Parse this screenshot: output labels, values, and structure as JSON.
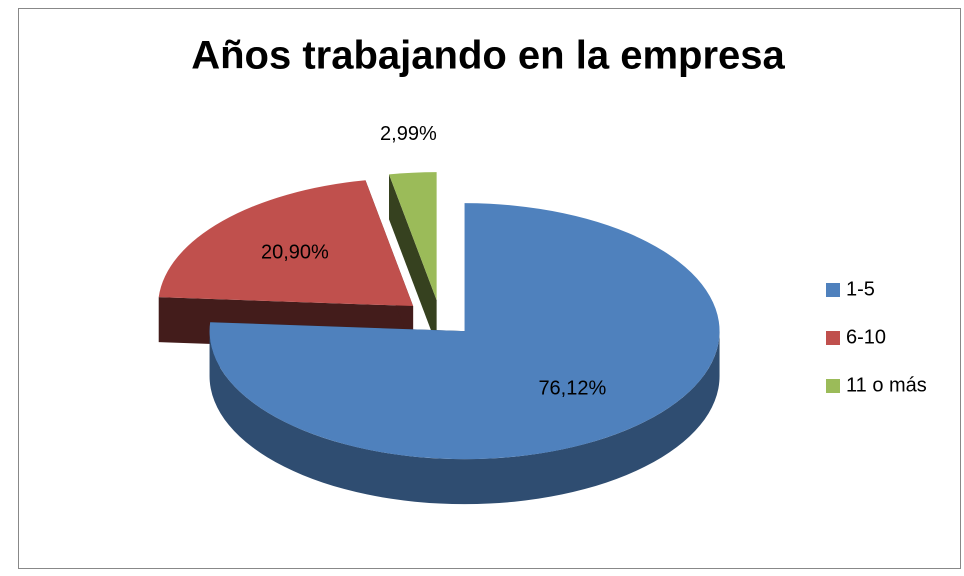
{
  "chart_data": {
    "type": "pie",
    "title": "Años trabajando en la empresa",
    "categories": [
      "1-5",
      "6-10",
      "11 o más"
    ],
    "values": [
      76.12,
      20.9,
      2.99
    ],
    "value_labels": [
      "76,12%",
      "20,90%",
      "2,99%"
    ],
    "colors": [
      "#4f81bd",
      "#c0504d",
      "#9bbb59"
    ],
    "legend": "right"
  }
}
